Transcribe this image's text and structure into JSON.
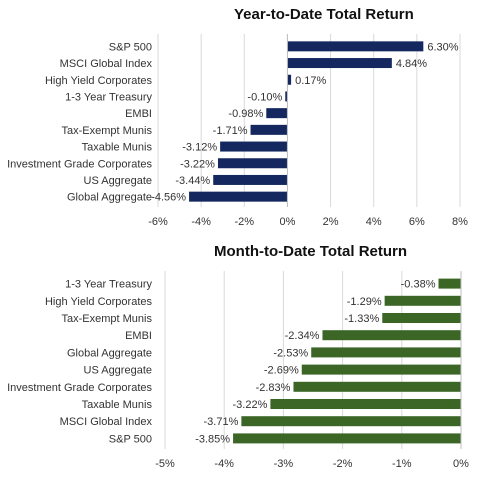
{
  "chart_data": [
    {
      "type": "bar",
      "orientation": "horizontal",
      "title": "Year-to-Date Total Return",
      "categories": [
        "S&P 500",
        "MSCI Global Index",
        "High Yield Corporates",
        "1-3 Year Treasury",
        "EMBI",
        "Tax-Exempt Munis",
        "Taxable Munis",
        "Investment Grade Corporates",
        "US Aggregate",
        "Global Aggregate"
      ],
      "values": [
        6.3,
        4.84,
        0.17,
        -0.1,
        -0.98,
        -1.71,
        -3.12,
        -3.22,
        -3.44,
        -4.56
      ],
      "value_labels": [
        "6.30%",
        "4.84%",
        "0.17%",
        "-0.10%",
        "-0.98%",
        "-1.71%",
        "-3.12%",
        "-3.22%",
        "-3.44%",
        "-4.56%"
      ],
      "xlim": [
        -6,
        8
      ],
      "ticks": [
        -6,
        -4,
        -2,
        0,
        2,
        4,
        6,
        8
      ],
      "tick_labels": [
        "-6%",
        "-4%",
        "-2%",
        "0%",
        "2%",
        "4%",
        "6%",
        "8%"
      ],
      "grid": true,
      "bar_color": "#14285f"
    },
    {
      "type": "bar",
      "orientation": "horizontal",
      "title": "Month-to-Date Total Return",
      "categories": [
        "1-3 Year Treasury",
        "High Yield Corporates",
        "Tax-Exempt Munis",
        "EMBI",
        "Global Aggregate",
        "US Aggregate",
        "Investment Grade Corporates",
        "Taxable Munis",
        "MSCI Global Index",
        "S&P 500"
      ],
      "values": [
        -0.38,
        -1.29,
        -1.33,
        -2.34,
        -2.53,
        -2.69,
        -2.83,
        -3.22,
        -3.71,
        -3.85
      ],
      "value_labels": [
        "-0.38%",
        "-1.29%",
        "-1.33%",
        "-2.34%",
        "-2.53%",
        "-2.69%",
        "-2.83%",
        "-3.22%",
        "-3.71%",
        "-3.85%"
      ],
      "xlim": [
        -5,
        0
      ],
      "ticks": [
        -5,
        -4,
        -3,
        -2,
        -1,
        0
      ],
      "tick_labels": [
        "-5%",
        "-4%",
        "-3%",
        "-2%",
        "-1%",
        "0%"
      ],
      "grid": true,
      "bar_color": "#3b6626"
    }
  ]
}
